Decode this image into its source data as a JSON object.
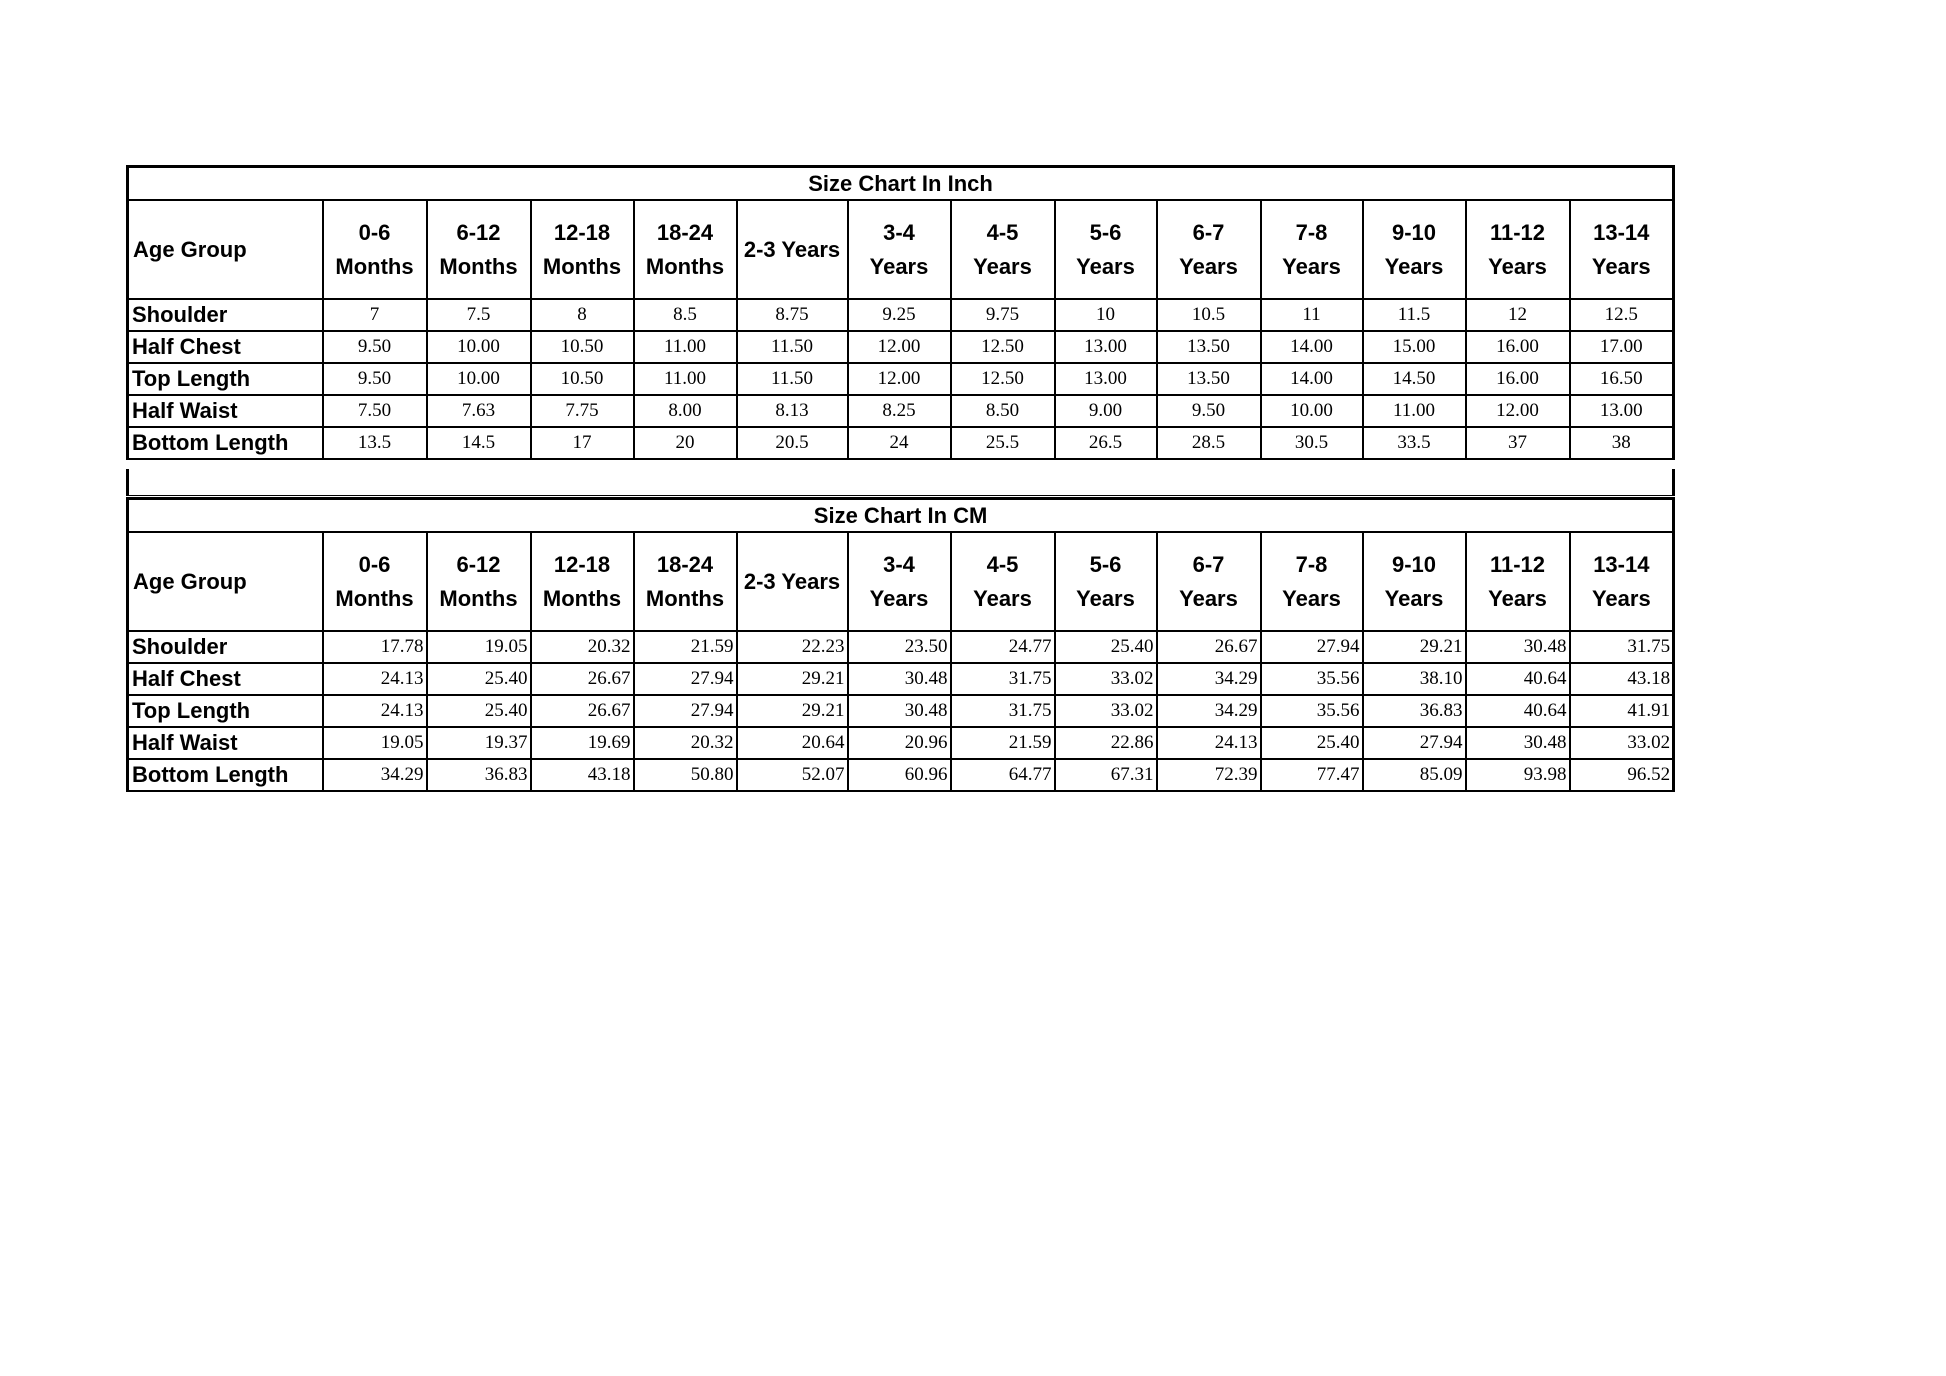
{
  "columns": [
    "0-6 Months",
    "6-12 Months",
    "12-18 Months",
    "18-24 Months",
    "2-3 Years",
    "3-4 Years",
    "4-5 Years",
    "5-6 Years",
    "6-7 Years",
    "7-8 Years",
    "9-10 Years",
    "11-12 Years",
    "13-14 Years"
  ],
  "age_group_label": "Age Group",
  "tables": [
    {
      "id": "inch",
      "title": "Size Chart In Inch",
      "rows": [
        {
          "label": "Shoulder",
          "values": [
            "7",
            "7.5",
            "8",
            "8.5",
            "8.75",
            "9.25",
            "9.75",
            "10",
            "10.5",
            "11",
            "11.5",
            "12",
            "12.5"
          ]
        },
        {
          "label": "Half Chest",
          "values": [
            "9.50",
            "10.00",
            "10.50",
            "11.00",
            "11.50",
            "12.00",
            "12.50",
            "13.00",
            "13.50",
            "14.00",
            "15.00",
            "16.00",
            "17.00"
          ]
        },
        {
          "label": "Top Length",
          "values": [
            "9.50",
            "10.00",
            "10.50",
            "11.00",
            "11.50",
            "12.00",
            "12.50",
            "13.00",
            "13.50",
            "14.00",
            "14.50",
            "16.00",
            "16.50"
          ]
        },
        {
          "label": "Half Waist",
          "values": [
            "7.50",
            "7.63",
            "7.75",
            "8.00",
            "8.13",
            "8.25",
            "8.50",
            "9.00",
            "9.50",
            "10.00",
            "11.00",
            "12.00",
            "13.00"
          ]
        },
        {
          "label": "Bottom Length",
          "values": [
            "13.5",
            "14.5",
            "17",
            "20",
            "20.5",
            "24",
            "25.5",
            "26.5",
            "28.5",
            "30.5",
            "33.5",
            "37",
            "38"
          ]
        }
      ]
    },
    {
      "id": "cm",
      "title": "Size Chart In CM",
      "rows": [
        {
          "label": "Shoulder",
          "values": [
            "17.78",
            "19.05",
            "20.32",
            "21.59",
            "22.23",
            "23.50",
            "24.77",
            "25.40",
            "26.67",
            "27.94",
            "29.21",
            "30.48",
            "31.75"
          ]
        },
        {
          "label": "Half Chest",
          "values": [
            "24.13",
            "25.40",
            "26.67",
            "27.94",
            "29.21",
            "30.48",
            "31.75",
            "33.02",
            "34.29",
            "35.56",
            "38.10",
            "40.64",
            "43.18"
          ]
        },
        {
          "label": "Top Length",
          "values": [
            "24.13",
            "25.40",
            "26.67",
            "27.94",
            "29.21",
            "30.48",
            "31.75",
            "33.02",
            "34.29",
            "35.56",
            "36.83",
            "40.64",
            "41.91"
          ]
        },
        {
          "label": "Half Waist",
          "values": [
            "19.05",
            "19.37",
            "19.69",
            "20.32",
            "20.64",
            "20.96",
            "21.59",
            "22.86",
            "24.13",
            "25.40",
            "27.94",
            "30.48",
            "33.02"
          ]
        },
        {
          "label": "Bottom Length",
          "values": [
            "34.29",
            "36.83",
            "43.18",
            "50.80",
            "52.07",
            "60.96",
            "64.77",
            "67.31",
            "72.39",
            "77.47",
            "85.09",
            "93.98",
            "96.52"
          ]
        }
      ]
    }
  ]
}
